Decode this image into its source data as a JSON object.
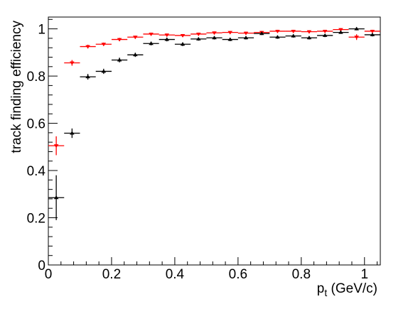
{
  "chart_data": {
    "type": "scatter",
    "title": "",
    "xlabel": "p_t (GeV/c)",
    "xlabel_main": "p",
    "xlabel_sub": "t",
    "xlabel_unit": " (GeV/c)",
    "ylabel": "track finding efficiency",
    "xlim": [
      0,
      1.05
    ],
    "ylim": [
      0,
      1.05
    ],
    "x_ticks": [
      0,
      0.2,
      0.4,
      0.6,
      0.8,
      1
    ],
    "x_tick_labels": [
      "0",
      "0.2",
      "0.4",
      "0.6",
      "0.8",
      "1"
    ],
    "y_ticks": [
      0,
      0.2,
      0.4,
      0.6,
      0.8,
      1
    ],
    "y_tick_labels": [
      "0",
      "0.2",
      "0.4",
      "0.6",
      "0.8",
      "1"
    ],
    "grid": false,
    "legend": "none",
    "bin_half_width": 0.025,
    "series": [
      {
        "color": "#ff0000",
        "marker": "triangle-down",
        "points": [
          {
            "x": 0.025,
            "y": 0.505,
            "err": 0.04
          },
          {
            "x": 0.075,
            "y": 0.856,
            "err": 0.012
          },
          {
            "x": 0.125,
            "y": 0.925,
            "err": 0.008
          },
          {
            "x": 0.175,
            "y": 0.935,
            "err": 0.007
          },
          {
            "x": 0.225,
            "y": 0.955,
            "err": 0.007
          },
          {
            "x": 0.275,
            "y": 0.965,
            "err": 0.006
          },
          {
            "x": 0.325,
            "y": 0.978,
            "err": 0.006
          },
          {
            "x": 0.375,
            "y": 0.974,
            "err": 0.006
          },
          {
            "x": 0.425,
            "y": 0.972,
            "err": 0.006
          },
          {
            "x": 0.475,
            "y": 0.978,
            "err": 0.006
          },
          {
            "x": 0.525,
            "y": 0.983,
            "err": 0.006
          },
          {
            "x": 0.575,
            "y": 0.985,
            "err": 0.006
          },
          {
            "x": 0.625,
            "y": 0.982,
            "err": 0.006
          },
          {
            "x": 0.675,
            "y": 0.985,
            "err": 0.006
          },
          {
            "x": 0.725,
            "y": 0.99,
            "err": 0.006
          },
          {
            "x": 0.775,
            "y": 0.99,
            "err": 0.006
          },
          {
            "x": 0.825,
            "y": 0.988,
            "err": 0.006
          },
          {
            "x": 0.875,
            "y": 0.99,
            "err": 0.006
          },
          {
            "x": 0.925,
            "y": 0.997,
            "err": 0.006
          },
          {
            "x": 0.975,
            "y": 0.965,
            "err": 0.012
          },
          {
            "x": 1.025,
            "y": 0.99,
            "err": 0.006
          }
        ]
      },
      {
        "color": "#000000",
        "marker": "triangle-up",
        "points": [
          {
            "x": 0.025,
            "y": 0.285,
            "err": 0.095
          },
          {
            "x": 0.075,
            "y": 0.558,
            "err": 0.02
          },
          {
            "x": 0.125,
            "y": 0.797,
            "err": 0.012
          },
          {
            "x": 0.175,
            "y": 0.82,
            "err": 0.011
          },
          {
            "x": 0.225,
            "y": 0.868,
            "err": 0.01
          },
          {
            "x": 0.275,
            "y": 0.89,
            "err": 0.009
          },
          {
            "x": 0.325,
            "y": 0.938,
            "err": 0.008
          },
          {
            "x": 0.375,
            "y": 0.955,
            "err": 0.008
          },
          {
            "x": 0.425,
            "y": 0.935,
            "err": 0.008
          },
          {
            "x": 0.475,
            "y": 0.957,
            "err": 0.007
          },
          {
            "x": 0.525,
            "y": 0.962,
            "err": 0.007
          },
          {
            "x": 0.575,
            "y": 0.955,
            "err": 0.007
          },
          {
            "x": 0.625,
            "y": 0.962,
            "err": 0.007
          },
          {
            "x": 0.675,
            "y": 0.98,
            "err": 0.006
          },
          {
            "x": 0.725,
            "y": 0.965,
            "err": 0.007
          },
          {
            "x": 0.775,
            "y": 0.97,
            "err": 0.007
          },
          {
            "x": 0.825,
            "y": 0.962,
            "err": 0.007
          },
          {
            "x": 0.875,
            "y": 0.972,
            "err": 0.007
          },
          {
            "x": 0.925,
            "y": 0.985,
            "err": 0.006
          },
          {
            "x": 0.975,
            "y": 1.0,
            "err": 0.006
          },
          {
            "x": 1.025,
            "y": 0.975,
            "err": 0.007
          }
        ]
      }
    ]
  }
}
